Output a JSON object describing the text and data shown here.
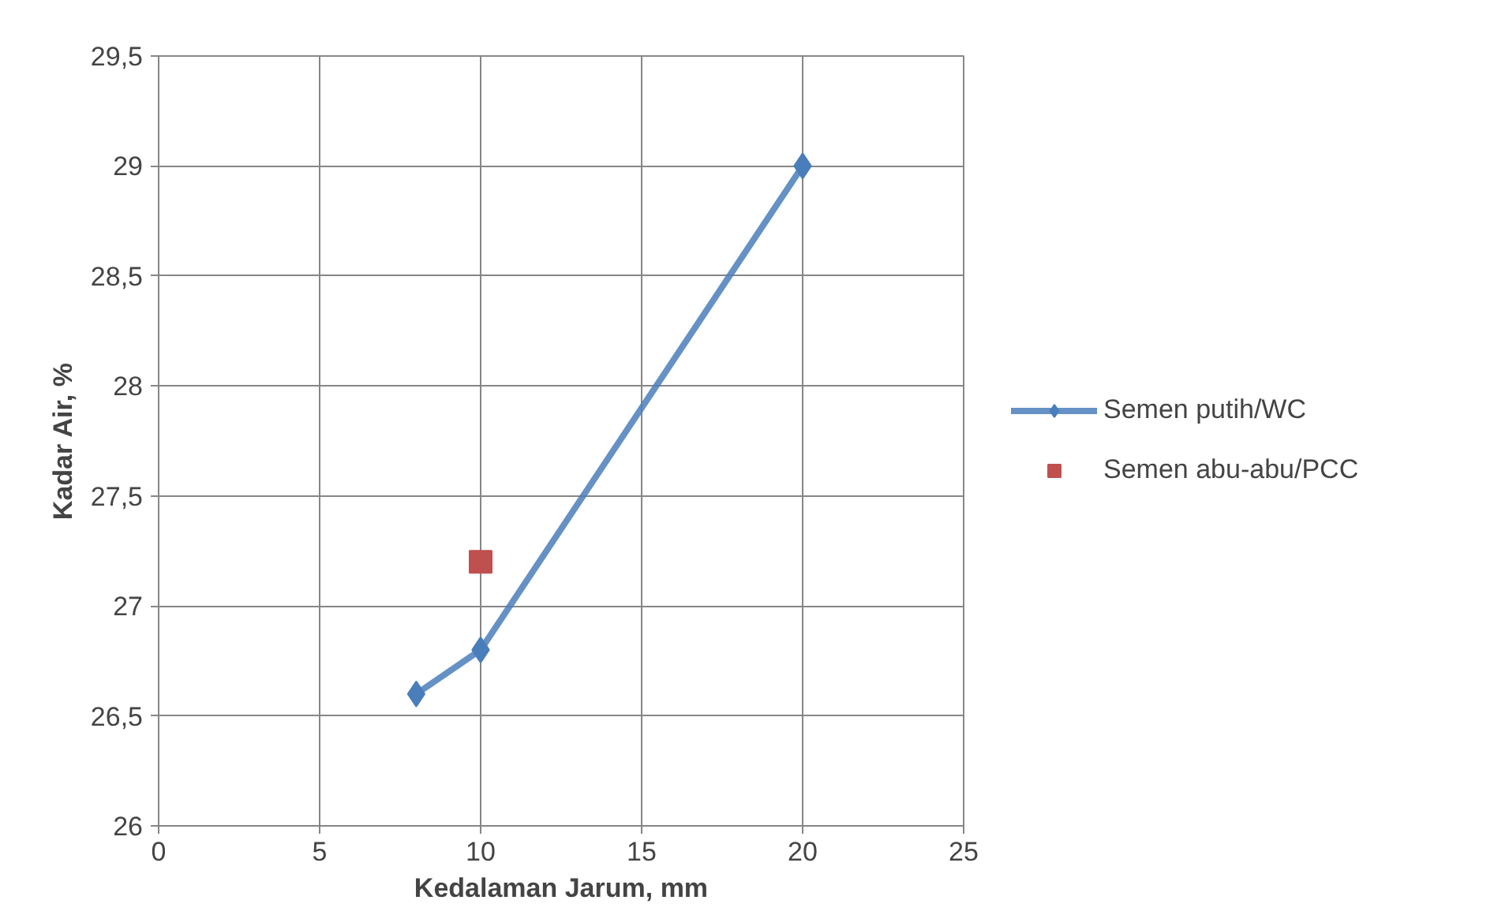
{
  "chart_data": {
    "type": "line",
    "xlabel": "Kedalaman Jarum, mm",
    "ylabel": "Kadar Air, %",
    "xlim": [
      0,
      25
    ],
    "xticks": [
      0,
      5,
      10,
      15,
      20,
      25
    ],
    "ylim": [
      26,
      29.5
    ],
    "yticks": [
      26,
      {
        "value": 26.5,
        "label": "26,5"
      },
      27,
      {
        "value": 27.5,
        "label": "27,5"
      },
      28,
      {
        "value": 28.5,
        "label": "28,5"
      },
      29,
      {
        "value": 29.5,
        "label": "29,5"
      }
    ],
    "grid": true,
    "legend": "right",
    "line_style": "solid",
    "series": [
      {
        "name": "Semen putih/WC",
        "marker": "diamond",
        "color": "#4a7ebb",
        "x": [
          8,
          10,
          20
        ],
        "values": [
          26.6,
          26.8,
          29.0
        ]
      },
      {
        "name": "Semen abu-abu/PCC",
        "type": "scatter",
        "marker": "square",
        "color": "#c0504d",
        "x": [
          10
        ],
        "values": [
          27.2
        ]
      }
    ]
  }
}
